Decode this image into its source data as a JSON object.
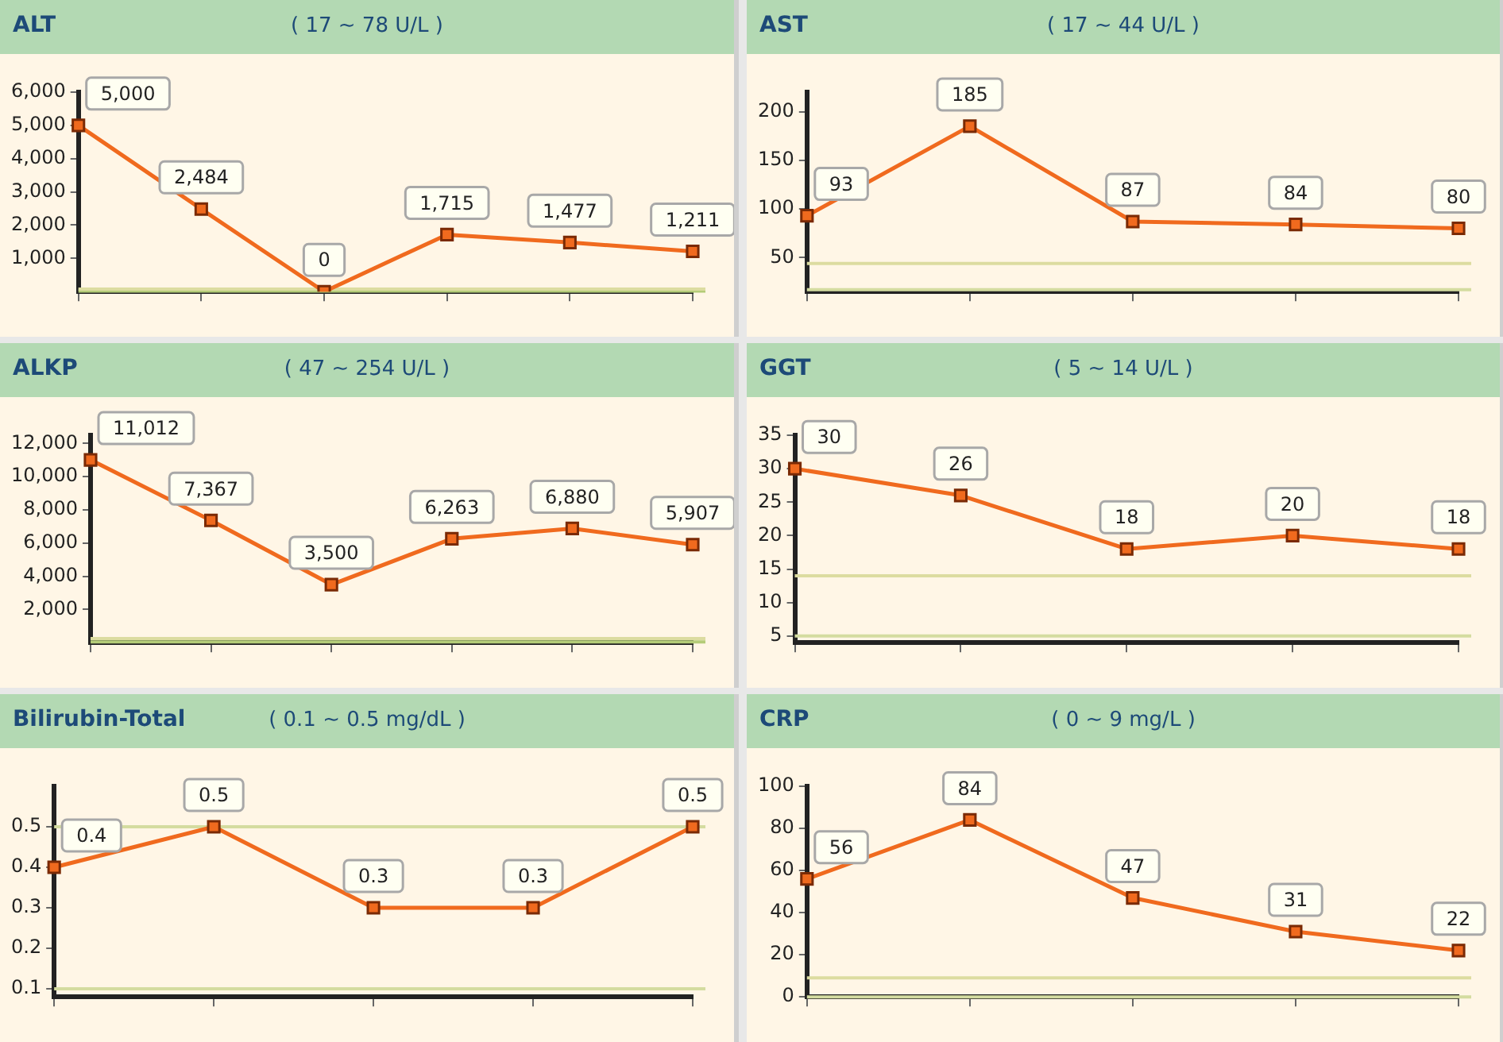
{
  "chart_data": [
    {
      "type": "line",
      "title": "ALT",
      "subtitle": "( 17 ~ 78 U/L )",
      "categories": [
        null,
        null,
        null,
        null,
        null,
        null
      ],
      "values": [
        5000,
        2484,
        0,
        1715,
        1477,
        1211
      ],
      "color": "#f06a1e",
      "marker": "square",
      "value_labels": [
        "5,000",
        "2,484",
        "0",
        "1,715",
        "1,477",
        "1,211"
      ],
      "ylim": [
        0,
        6000
      ],
      "yticks": [
        {
          "value": 1000,
          "label": "1,000"
        },
        {
          "value": 2000,
          "label": "2,000"
        },
        {
          "value": 3000,
          "label": "3,000"
        },
        {
          "value": 4000,
          "label": "4,000"
        },
        {
          "value": 5000,
          "label": "5,000"
        },
        {
          "value": 6000,
          "label": "6,000"
        }
      ],
      "ref_lines": [
        {
          "axis": "y",
          "value": 17,
          "color": "#b4cc78"
        },
        {
          "axis": "y",
          "value": 78,
          "color": "#dcdca0"
        }
      ]
    },
    {
      "type": "line",
      "title": "AST",
      "subtitle": "( 17 ~ 44 U/L )",
      "categories": [
        null,
        null,
        null,
        null,
        null
      ],
      "values": [
        93,
        185,
        87,
        84,
        80
      ],
      "color": "#f06a1e",
      "marker": "square",
      "data_labels": true,
      "ylim": [
        15,
        220
      ],
      "yticks": [
        50,
        100,
        150,
        200
      ],
      "ref_lines": [
        {
          "axis": "y",
          "value": 17,
          "color": "#d4dca0"
        },
        {
          "axis": "y",
          "value": 44,
          "color": "#dcdca0"
        }
      ]
    },
    {
      "type": "line",
      "title": "ALKP",
      "subtitle": "( 47 ~ 254 U/L )",
      "categories": [
        null,
        null,
        null,
        null,
        null,
        null
      ],
      "values": [
        11012,
        7367,
        3500,
        6263,
        6880,
        5907
      ],
      "color": "#f06a1e",
      "marker": "square",
      "value_labels": [
        "11,012",
        "7,367",
        "3,500",
        "6,263",
        "6,880",
        "5,907"
      ],
      "ylim": [
        0,
        12500
      ],
      "yticks": [
        {
          "value": 2000,
          "label": "2,000"
        },
        {
          "value": 4000,
          "label": "4,000"
        },
        {
          "value": 6000,
          "label": "6,000"
        },
        {
          "value": 8000,
          "label": "8,000"
        },
        {
          "value": 10000,
          "label": "10,000"
        },
        {
          "value": 12000,
          "label": "12,000"
        }
      ],
      "ref_lines": [
        {
          "axis": "y",
          "value": 47,
          "color": "#b4cc78"
        },
        {
          "axis": "y",
          "value": 254,
          "color": "#dcdca0"
        }
      ]
    },
    {
      "type": "line",
      "title": "GGT",
      "subtitle": "( 5 ~ 14 U/L )",
      "categories": [
        null,
        null,
        null,
        null,
        null
      ],
      "values": [
        30,
        26,
        18,
        20,
        18
      ],
      "color": "#f06a1e",
      "marker": "square",
      "data_labels": true,
      "ylim": [
        4,
        35
      ],
      "yticks": [
        5,
        10,
        15,
        20,
        25,
        30,
        35
      ],
      "ref_lines": [
        {
          "axis": "y",
          "value": 5,
          "color": "#d4dca0"
        },
        {
          "axis": "y",
          "value": 14,
          "color": "#dcdca0"
        }
      ]
    },
    {
      "type": "line",
      "title": "Bilirubin-Total",
      "subtitle": "( 0.1 ~ 0.5 mg/dL )",
      "categories": [
        null,
        null,
        null,
        null,
        null
      ],
      "values": [
        0.4,
        0.5,
        0.3,
        0.3,
        0.5
      ],
      "color": "#f06a1e",
      "marker": "square",
      "data_labels": true,
      "ylim": [
        0.08,
        0.6
      ],
      "yticks": [
        0.1,
        0.2,
        0.3,
        0.4,
        0.5
      ],
      "ref_lines": [
        {
          "axis": "y",
          "value": 0.1,
          "color": "#d4dca0"
        },
        {
          "axis": "y",
          "value": 0.5,
          "color": "#d4dca0"
        }
      ]
    },
    {
      "type": "line",
      "title": "CRP",
      "subtitle": "( 0 ~ 9 mg/L )",
      "categories": [
        null,
        null,
        null,
        null,
        null
      ],
      "values": [
        56,
        84,
        47,
        31,
        22
      ],
      "color": "#f06a1e",
      "marker": "square",
      "data_labels": true,
      "ylim": [
        0,
        100
      ],
      "yticks": [
        0,
        20,
        40,
        60,
        80,
        100
      ],
      "ref_lines": [
        {
          "axis": "y",
          "value": 0,
          "color": "#d4dca0"
        },
        {
          "axis": "y",
          "value": 9,
          "color": "#dcdca0"
        }
      ]
    }
  ]
}
